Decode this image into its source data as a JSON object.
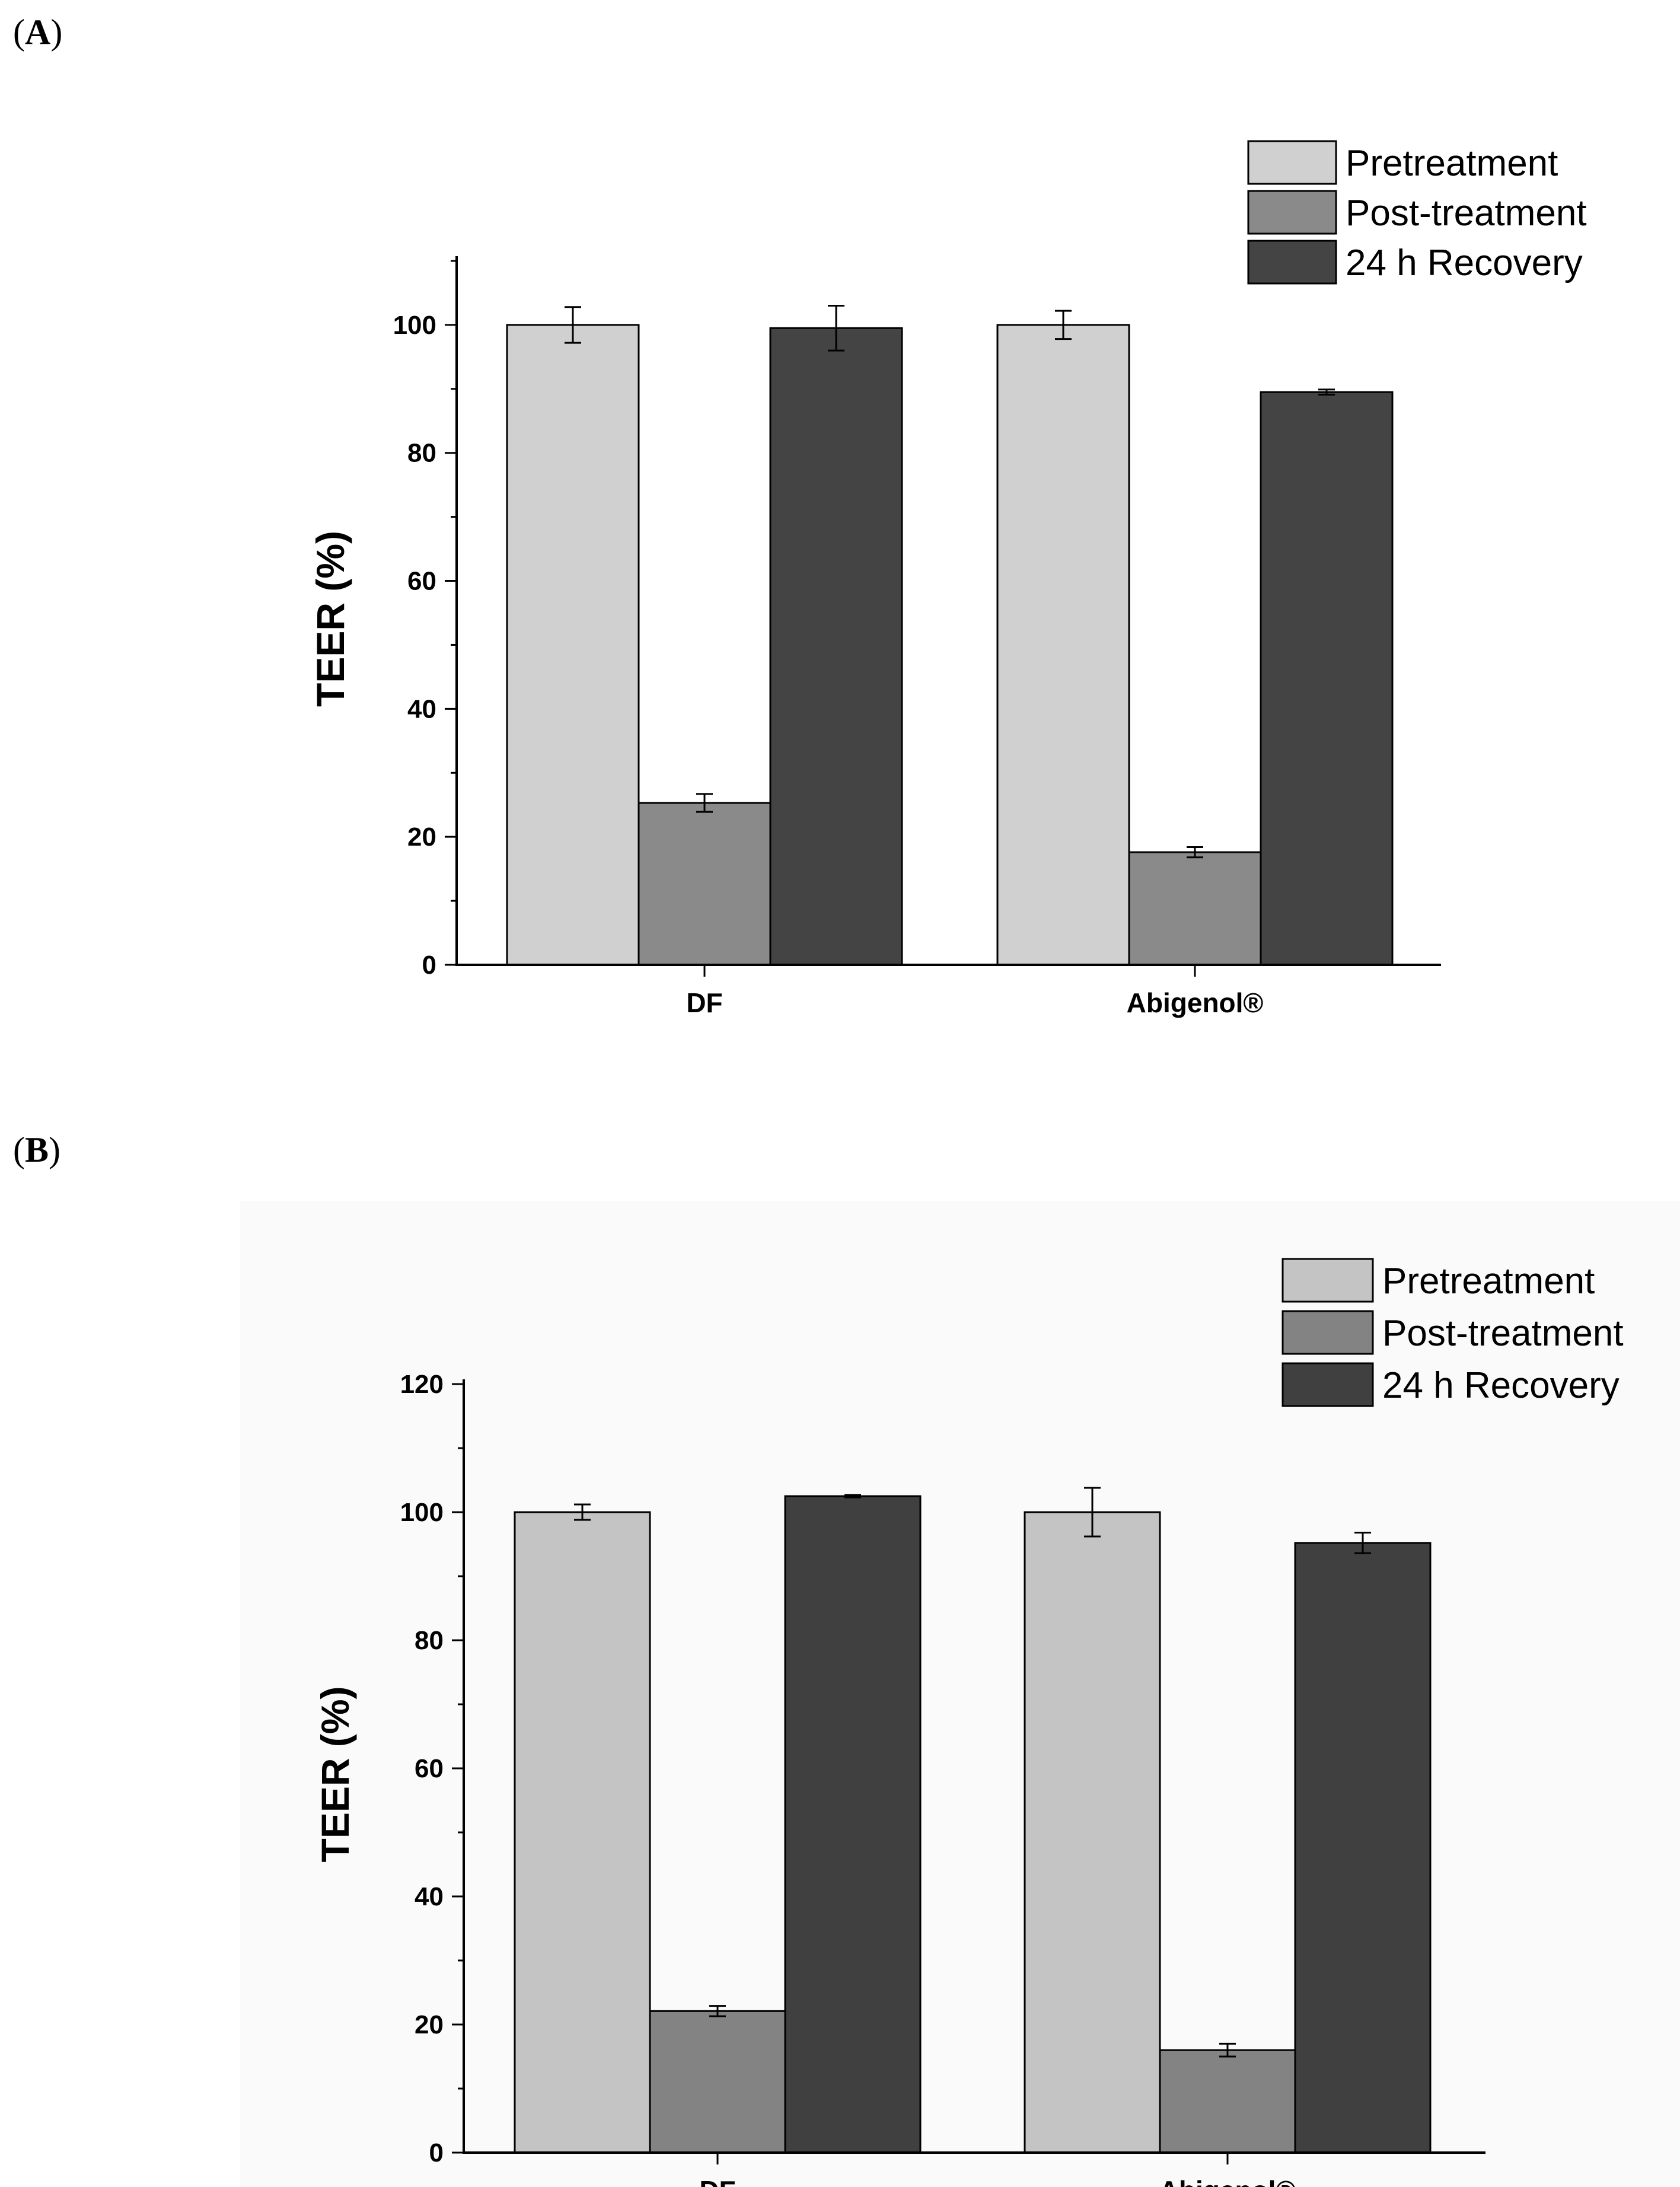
{
  "panels": {
    "a": {
      "open": "(",
      "letter": "A",
      "close": ")"
    },
    "b": {
      "open": "(",
      "letter": "B",
      "close": ")"
    }
  },
  "chart_data": [
    {
      "type": "bar",
      "panel": "A",
      "title": "",
      "xlabel": "",
      "ylabel": "TEER (%)",
      "categories": [
        "DF",
        "Abigenol®"
      ],
      "ylim": [
        0,
        110
      ],
      "yticks": [
        0,
        20,
        40,
        60,
        80,
        100
      ],
      "minor_step": 10,
      "colors": [
        "#d0d0d0",
        "#8a8a8a",
        "#444444"
      ],
      "legend_position": "top-right",
      "series": [
        {
          "name": "Pretreatment",
          "values": [
            100,
            100
          ],
          "errors": [
            2.8,
            2.2
          ]
        },
        {
          "name": "Post-treatment",
          "values": [
            25.3,
            17.6
          ],
          "errors": [
            1.4,
            0.8
          ]
        },
        {
          "name": "24 h Recovery",
          "values": [
            99.5,
            89.5
          ],
          "errors": [
            3.5,
            0.4
          ]
        }
      ]
    },
    {
      "type": "bar",
      "panel": "B",
      "title": "",
      "xlabel": "",
      "ylabel": "TEER (%)",
      "categories": [
        "DF",
        "Abigenol®"
      ],
      "ylim": [
        0,
        120
      ],
      "yticks": [
        0,
        20,
        40,
        60,
        80,
        100,
        120
      ],
      "minor_step": 10,
      "colors": [
        "#c4c4c4",
        "#838383",
        "#404040"
      ],
      "legend_position": "top-right",
      "series": [
        {
          "name": "Pretreatment",
          "values": [
            100,
            100
          ],
          "errors": [
            1.2,
            3.8
          ]
        },
        {
          "name": "Post-treatment",
          "values": [
            22.1,
            16.0
          ],
          "errors": [
            0.8,
            1.0
          ]
        },
        {
          "name": "24 h Recovery",
          "values": [
            102.5,
            95.2
          ],
          "errors": [
            0.2,
            1.6
          ]
        }
      ]
    }
  ]
}
